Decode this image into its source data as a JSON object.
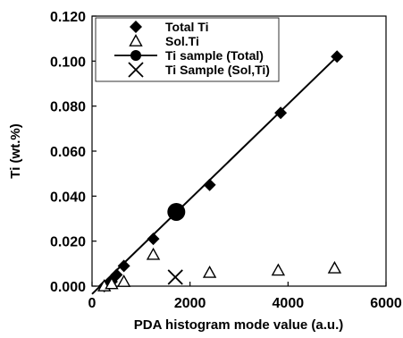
{
  "chart_data": {
    "type": "scatter",
    "xlabel": "PDA histogram mode value (a.u.)",
    "ylabel": "Ti (wt.%)",
    "xlim": [
      0,
      6000
    ],
    "ylim": [
      0,
      0.12
    ],
    "x_ticks": [
      "0",
      "2000",
      "4000",
      "6000"
    ],
    "y_ticks": [
      "0.000",
      "0.020",
      "0.040",
      "0.060",
      "0.080",
      "0.100",
      "0.120"
    ],
    "legend_position": "top-left",
    "series": [
      {
        "name": "Total Ti",
        "marker": "diamond-filled",
        "points": [
          [
            250,
            0.0
          ],
          [
            400,
            0.002
          ],
          [
            500,
            0.005
          ],
          [
            650,
            0.009
          ],
          [
            1250,
            0.021
          ],
          [
            2400,
            0.045
          ],
          [
            3850,
            0.077
          ],
          [
            5000,
            0.102
          ]
        ]
      },
      {
        "name": "Sol.Ti",
        "marker": "triangle-open",
        "points": [
          [
            250,
            0.0
          ],
          [
            400,
            0.001
          ],
          [
            650,
            0.002
          ],
          [
            1250,
            0.014
          ],
          [
            2400,
            0.006
          ],
          [
            3800,
            0.007
          ],
          [
            4950,
            0.008
          ]
        ]
      },
      {
        "name": "Ti sample (Total)",
        "marker": "circle-filled",
        "points": [
          [
            1720,
            0.033
          ]
        ]
      },
      {
        "name": "Ti Sample (Sol,Ti)",
        "marker": "x",
        "points": [
          [
            1700,
            0.004
          ]
        ]
      }
    ],
    "fit_line": {
      "series": "Ti sample (Total)",
      "points": [
        [
          0,
          -0.0035
        ],
        [
          5000,
          0.102
        ]
      ]
    }
  }
}
